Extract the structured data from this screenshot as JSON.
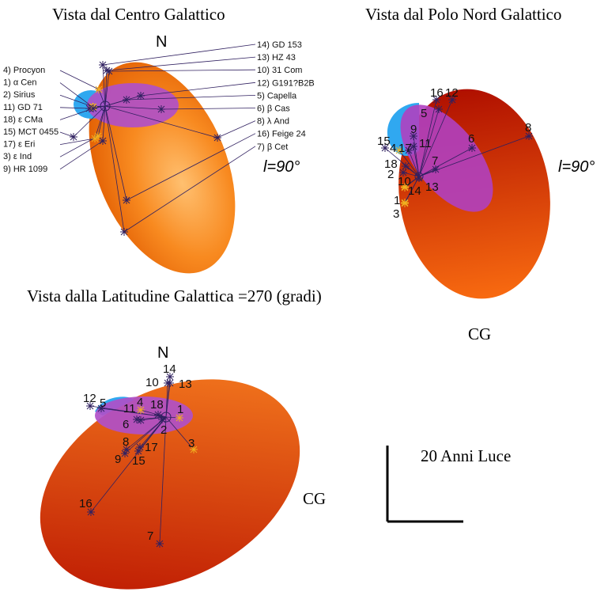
{
  "panels": {
    "galactic_center": {
      "title": "Vista dal Centro Galattico",
      "north": "N",
      "longitude_label": "l=90°",
      "left_labels": [
        "4) Procyon",
        "1) α Cen",
        "2) Sirius",
        "11) GD 71",
        "18) ε CMa",
        "15) MCT 0455",
        "17) ε Eri",
        "3) ε Ind",
        "9) HR 1099"
      ],
      "right_labels": [
        "14) GD 153",
        "13) HZ 43",
        "10) 31 Com",
        "12) G191?B2B",
        "5) Capella",
        "6) β Cas",
        "8) λ And",
        "16) Feige 24",
        "7) β Cet"
      ]
    },
    "north_pole": {
      "title": "Vista dal Polo Nord Galattico",
      "longitude_label": "l=90°",
      "gc_label": "CG",
      "star_numbers": [
        "16",
        "12",
        "5",
        "9",
        "11",
        "15",
        "4",
        "17",
        "18",
        "2",
        "10",
        "14",
        "13",
        "7",
        "6",
        "8",
        "1",
        "3"
      ]
    },
    "latitude": {
      "title": "Vista dalla Latitudine Galattica =270 (gradi)",
      "north": "N",
      "gc_label": "CG",
      "star_numbers": [
        "14",
        "10",
        "13",
        "12",
        "5",
        "4",
        "11",
        "18",
        "1",
        "6",
        "2",
        "3",
        "8",
        "17",
        "9",
        "15",
        "16",
        "7"
      ]
    }
  },
  "scale_bar": {
    "label": "20 Anni Luce"
  },
  "colors": {
    "orange": "#f06010",
    "purple": "#b050c8",
    "blue": "#30a8f0",
    "star": "#302060",
    "star_near": "#f0b020"
  }
}
